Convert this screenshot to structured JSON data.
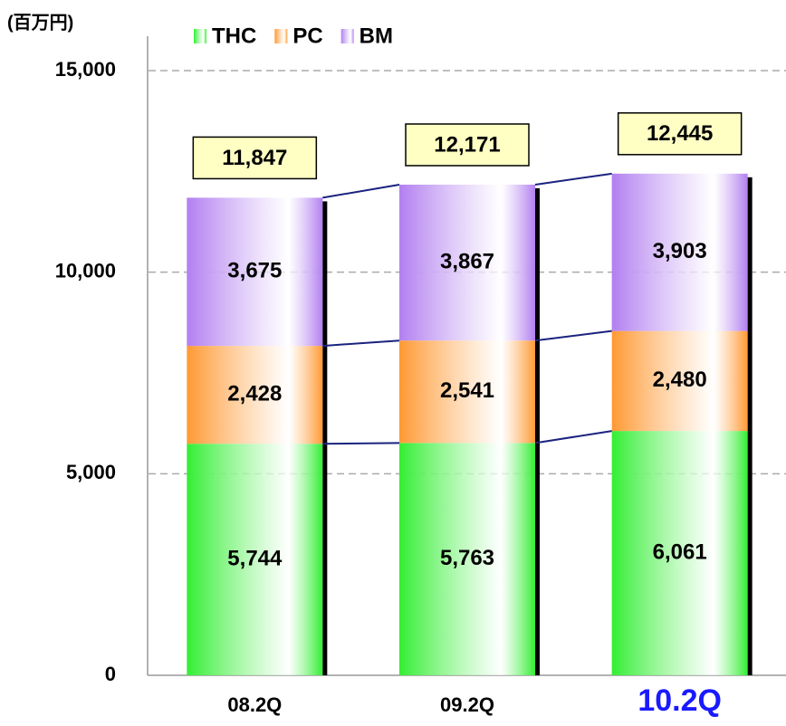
{
  "chart_data": {
    "type": "stacked_bar",
    "y_axis_label": "(百万円)",
    "categories": [
      "08.2Q",
      "09.2Q",
      "10.2Q"
    ],
    "series": [
      {
        "name": "THC",
        "color": "#33ee33",
        "values": [
          5744,
          5763,
          6061
        ],
        "value_labels": [
          "5,744",
          "5,763",
          "6,061"
        ]
      },
      {
        "name": "PC",
        "color": "#ff9933",
        "values": [
          2428,
          2541,
          2480
        ],
        "value_labels": [
          "2,428",
          "2,541",
          "2,480"
        ]
      },
      {
        "name": "BM",
        "color": "#b27ff0",
        "values": [
          3675,
          3867,
          3903
        ],
        "value_labels": [
          "3,675",
          "3,867",
          "3,903"
        ]
      }
    ],
    "totals": [
      11847,
      12171,
      12445
    ],
    "totals_labels": [
      "11,847",
      "12,171",
      "12,445"
    ],
    "ylim": [
      0,
      15000
    ],
    "yticks": [
      0,
      {
        "value": 5000,
        "label": "5,000"
      },
      {
        "value": 10000,
        "label": "10,000"
      },
      {
        "value": 15000,
        "label": "15,000"
      }
    ],
    "grid": true,
    "legend": "top",
    "highlight": {
      "index": 2,
      "color": "#1a1aff"
    }
  }
}
